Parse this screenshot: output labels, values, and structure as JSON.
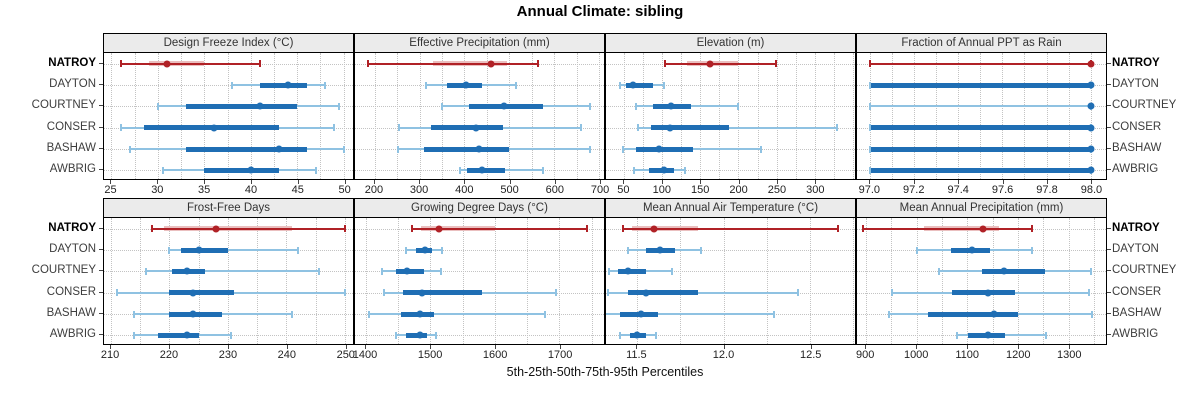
{
  "title": "Annual Climate: sibling",
  "caption": "5th-25th-50th-75th-95th Percentiles",
  "stations": [
    "NATROY",
    "DAYTON",
    "COURTNEY",
    "CONSER",
    "BASHAW",
    "AWBRIG"
  ],
  "highlight_station": "NATROY",
  "percentiles": [
    "5th",
    "25th",
    "50th",
    "75th",
    "95th"
  ],
  "colors": {
    "highlight": "#b02126",
    "highlight_band": "#eabfbf",
    "normal": "#1f6eb4",
    "normal_whisker": "#8fc2e2",
    "grid": "#c3c3c3",
    "strip_bg": "#ebebeb",
    "border": "#000000"
  },
  "chart_data": {
    "type": "dotplot-percentile-intervals",
    "title": "Annual Climate: sibling",
    "xlabel": "5th-25th-50th-75th-95th Percentiles",
    "layout": {
      "rows": 2,
      "cols": 4,
      "grid": "dotted",
      "legend_position": "none",
      "station_labels": "both-sides",
      "highlight": "NATROY"
    },
    "stations": [
      "NATROY",
      "DAYTON",
      "COURTNEY",
      "CONSER",
      "BASHAW",
      "AWBRIG"
    ],
    "panels": [
      {
        "title": "Design Freeze Index (°C)",
        "row": 0,
        "col": 0,
        "xlim": [
          24.2,
          51.0
        ],
        "ticks": [
          25,
          30,
          35,
          40,
          45,
          50
        ],
        "tick_labels": [
          "25",
          "30",
          "35",
          "40",
          "45",
          "50"
        ],
        "values": {
          "NATROY": [
            26,
            29,
            31,
            35,
            41
          ],
          "DAYTON": [
            38,
            41,
            44,
            46,
            48
          ],
          "COURTNEY": [
            30,
            33,
            41,
            45,
            49.5
          ],
          "CONSER": [
            26,
            28.5,
            36,
            43,
            49
          ],
          "BASHAW": [
            27,
            33,
            43,
            46,
            50
          ],
          "AWBRIG": [
            30.5,
            35,
            40,
            43,
            47
          ]
        }
      },
      {
        "title": "Effective Precipitation (mm)",
        "row": 0,
        "col": 1,
        "xlim": [
          156,
          711
        ],
        "ticks": [
          200,
          300,
          400,
          500,
          600,
          700
        ],
        "tick_labels": [
          "200",
          "300",
          "400",
          "500",
          "600",
          "700"
        ],
        "values": {
          "NATROY": [
            185,
            330,
            460,
            495,
            565
          ],
          "DAYTON": [
            315,
            360,
            403,
            440,
            515
          ],
          "COURTNEY": [
            350,
            410,
            487,
            575,
            680
          ],
          "CONSER": [
            255,
            325,
            425,
            485,
            660
          ],
          "BASHAW": [
            252,
            310,
            432,
            500,
            680
          ],
          "AWBRIG": [
            390,
            405,
            440,
            490,
            575
          ]
        }
      },
      {
        "title": "Elevation (m)",
        "row": 0,
        "col": 2,
        "xlim": [
          26,
          353
        ],
        "ticks": [
          50,
          100,
          150,
          200,
          250,
          300
        ],
        "tick_labels": [
          "50",
          "100",
          "150",
          "200",
          "250",
          "300"
        ],
        "values": {
          "NATROY": [
            103,
            133,
            162,
            200,
            249
          ],
          "DAYTON": [
            45,
            52,
            61,
            88,
            102
          ],
          "COURTNEY": [
            65,
            88,
            112,
            138,
            200
          ],
          "CONSER": [
            68,
            85,
            110,
            188,
            330
          ],
          "BASHAW": [
            48,
            65,
            95,
            140,
            229
          ],
          "AWBRIG": [
            63,
            82,
            102,
            115,
            130
          ]
        }
      },
      {
        "title": "Fraction of Annual PPT as Rain",
        "row": 0,
        "col": 3,
        "xlim": [
          96.94,
          98.07
        ],
        "ticks": [
          97.0,
          97.2,
          97.4,
          97.6,
          97.8,
          98.0
        ],
        "tick_labels": [
          "97.0",
          "97.2",
          "97.4",
          "97.6",
          "97.8",
          "98.0"
        ],
        "values": {
          "NATROY": [
            97.0,
            98.0,
            98.0,
            98.0,
            98.0
          ],
          "DAYTON": [
            97.0,
            97.0,
            98.0,
            98.0,
            98.0
          ],
          "COURTNEY": [
            97.0,
            98.0,
            98.0,
            98.0,
            98.0
          ],
          "CONSER": [
            97.0,
            97.0,
            98.0,
            98.0,
            98.0
          ],
          "BASHAW": [
            97.0,
            97.0,
            98.0,
            98.0,
            98.0
          ],
          "AWBRIG": [
            97.0,
            97.0,
            98.0,
            98.0,
            98.0
          ]
        }
      },
      {
        "title": "Frost-Free Days",
        "row": 1,
        "col": 0,
        "xlim": [
          208.8,
          251.4
        ],
        "ticks": [
          210,
          220,
          230,
          240,
          250
        ],
        "tick_labels": [
          "210",
          "220",
          "230",
          "240",
          "250"
        ],
        "values": {
          "NATROY": [
            217,
            219,
            228,
            241,
            250
          ],
          "DAYTON": [
            220,
            222,
            225,
            230,
            242
          ],
          "COURTNEY": [
            216,
            220.5,
            223,
            226,
            245.5
          ],
          "CONSER": [
            211,
            220,
            224,
            231,
            250
          ],
          "BASHAW": [
            214,
            220,
            224,
            229,
            241
          ],
          "AWBRIG": [
            214,
            218,
            223,
            225,
            230.5
          ]
        }
      },
      {
        "title": "Growing Degree Days (°C)",
        "row": 1,
        "col": 1,
        "xlim": [
          1383,
          1769
        ],
        "ticks": [
          1400,
          1500,
          1600,
          1700
        ],
        "tick_labels": [
          "1400",
          "1500",
          "1600",
          "1700"
        ],
        "values": {
          "NATROY": [
            1472,
            1486,
            1513,
            1600,
            1743
          ],
          "DAYTON": [
            1462,
            1477,
            1492,
            1503,
            1518
          ],
          "COURTNEY": [
            1425,
            1447,
            1464,
            1490,
            1517
          ],
          "CONSER": [
            1428,
            1458,
            1487,
            1580,
            1694
          ],
          "BASHAW": [
            1405,
            1455,
            1484,
            1505,
            1677
          ],
          "AWBRIG": [
            1446,
            1462,
            1483,
            1495,
            1508
          ]
        }
      },
      {
        "title": "Mean Annual Air Temperature (°C)",
        "row": 1,
        "col": 2,
        "xlim": [
          11.32,
          12.76
        ],
        "ticks": [
          11.5,
          12.0,
          12.5
        ],
        "tick_labels": [
          "11.5",
          "12.0",
          "12.5"
        ],
        "values": {
          "NATROY": [
            11.42,
            11.47,
            11.6,
            11.85,
            12.66
          ],
          "DAYTON": [
            11.45,
            11.55,
            11.63,
            11.72,
            11.87
          ],
          "COURTNEY": [
            11.34,
            11.39,
            11.45,
            11.55,
            11.7
          ],
          "CONSER": [
            11.33,
            11.45,
            11.55,
            11.85,
            12.43
          ],
          "BASHAW": [
            11.23,
            11.4,
            11.52,
            11.62,
            12.29
          ],
          "AWBRIG": [
            11.4,
            11.46,
            11.5,
            11.55,
            11.61
          ]
        }
      },
      {
        "title": "Mean Annual Precipitation (mm)",
        "row": 1,
        "col": 3,
        "xlim": [
          882,
          1374
        ],
        "ticks": [
          900,
          1000,
          1100,
          1200,
          1300
        ],
        "tick_labels": [
          "900",
          "1000",
          "1100",
          "1200",
          "1300"
        ],
        "values": {
          "NATROY": [
            893,
            1015,
            1130,
            1163,
            1228
          ],
          "DAYTON": [
            1000,
            1068,
            1110,
            1145,
            1228
          ],
          "COURTNEY": [
            1045,
            1128,
            1172,
            1253,
            1345
          ],
          "CONSER": [
            952,
            1070,
            1140,
            1195,
            1340
          ],
          "BASHAW": [
            945,
            1022,
            1152,
            1200,
            1347
          ],
          "AWBRIG": [
            1080,
            1102,
            1140,
            1175,
            1255
          ]
        }
      }
    ]
  }
}
